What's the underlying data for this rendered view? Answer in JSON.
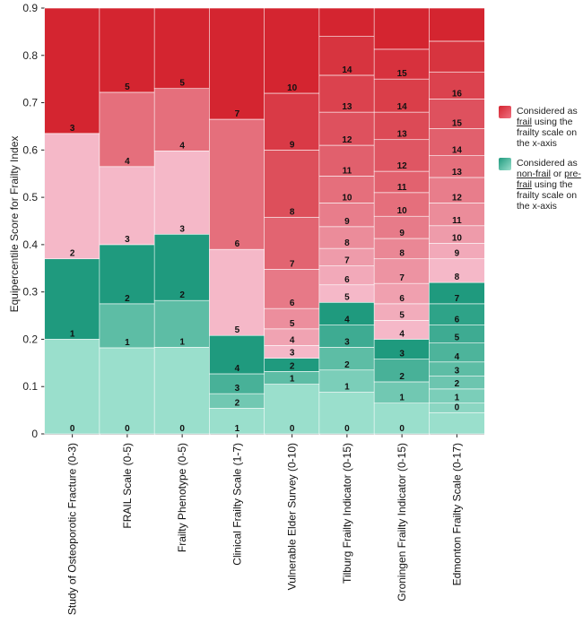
{
  "chart_data": {
    "type": "bar",
    "stacked": true,
    "title": "",
    "ylabel": "Equipercentile Score for Frailty Index",
    "xlabel": "",
    "ylim": [
      0,
      0.9
    ],
    "yticks": [
      "0",
      "0.1",
      "0.2",
      "0.3",
      "0.4",
      "0.5",
      "0.6",
      "0.7",
      "0.8",
      "0.9"
    ],
    "legend_position": "right",
    "colors": {
      "frail_dark": "#d42530",
      "frail_light": "#f5b8c8",
      "nonfrail_dark": "#1f9a7e",
      "nonfrail_light": "#9adfcc"
    },
    "legend": [
      {
        "name": "frail",
        "pre": "Considered as ",
        "term": "frail",
        "post": " using the frailty scale on the x-axis"
      },
      {
        "name": "nonfrail",
        "pre": "Considered as ",
        "term": "non-frail",
        "mid": " or ",
        "term2": "pre-frail",
        "post": " using the frailty scale on the x-axis"
      }
    ],
    "categories": [
      {
        "name": "Study of Osteoporotic Fracture (0-3)",
        "boundaries": [
          0,
          0.2,
          0.37,
          0.635,
          0.9
        ],
        "labels": [
          "0",
          "1",
          "2",
          "3"
        ],
        "frail_from": 2
      },
      {
        "name": "FRAIL Scale (0-5)",
        "boundaries": [
          0,
          0.182,
          0.275,
          0.4,
          0.565,
          0.722,
          0.9
        ],
        "labels": [
          "0",
          "1",
          "2",
          "3",
          "4",
          "5"
        ],
        "frail_from": 3
      },
      {
        "name": "Frailty Phenotype (0-5)",
        "boundaries": [
          0,
          0.183,
          0.282,
          0.422,
          0.598,
          0.73,
          0.9
        ],
        "labels": [
          "0",
          "1",
          "2",
          "3",
          "4",
          "5"
        ],
        "frail_from": 3
      },
      {
        "name": "Clinical Frailty Scale (1-7)",
        "boundaries": [
          0,
          0.054,
          0.085,
          0.127,
          0.208,
          0.39,
          0.665,
          0.9
        ],
        "labels": [
          "1",
          "2",
          "3",
          "4",
          "5",
          "6",
          "7"
        ],
        "frail_from": 4
      },
      {
        "name": "Vulnerable Elder Survey (0-10)",
        "boundaries": [
          0,
          0.105,
          0.132,
          0.16,
          0.187,
          0.222,
          0.265,
          0.348,
          0.458,
          0.6,
          0.72,
          0.9
        ],
        "labels": [
          "0",
          "1",
          "2",
          "3",
          "4",
          "5",
          "6",
          "7",
          "8",
          "9",
          "10"
        ],
        "frail_from": 3
      },
      {
        "name": "Tilburg Frailty Indicator (0-15)",
        "boundaries": [
          0,
          0.088,
          0.135,
          0.183,
          0.23,
          0.278,
          0.315,
          0.355,
          0.392,
          0.438,
          0.488,
          0.545,
          0.61,
          0.68,
          0.758,
          0.84,
          0.9
        ],
        "labels": [
          "0",
          "1",
          "2",
          "3",
          "4",
          "5",
          "6",
          "7",
          "8",
          "9",
          "10",
          "11",
          "12",
          "13",
          "14"
        ],
        "frail_from": 5
      },
      {
        "name": "Groningen Frailty Indicator (0-15)",
        "boundaries": [
          0,
          0.065,
          0.11,
          0.158,
          0.2,
          0.24,
          0.275,
          0.318,
          0.37,
          0.413,
          0.46,
          0.51,
          0.555,
          0.622,
          0.68,
          0.75,
          0.813,
          0.9
        ],
        "labels": [
          "0",
          "1",
          "2",
          "3",
          "4",
          "5",
          "6",
          "7",
          "8",
          "9",
          "10",
          "11",
          "12",
          "13",
          "14",
          "15"
        ],
        "frail_from": 4
      },
      {
        "name": "Edmonton Frailty Scale (0-17)",
        "boundaries": [
          0,
          0.045,
          0.065,
          0.095,
          0.122,
          0.152,
          0.192,
          0.23,
          0.275,
          0.32,
          0.37,
          0.403,
          0.44,
          0.488,
          0.542,
          0.588,
          0.645,
          0.708,
          0.765,
          0.83,
          0.9
        ],
        "labels": [
          "",
          "0",
          "1",
          "2",
          "3",
          "4",
          "5",
          "6",
          "7",
          "8",
          "9",
          "10",
          "11",
          "12",
          "13",
          "14",
          "15",
          "16"
        ],
        "frail_from": 9
      }
    ]
  }
}
